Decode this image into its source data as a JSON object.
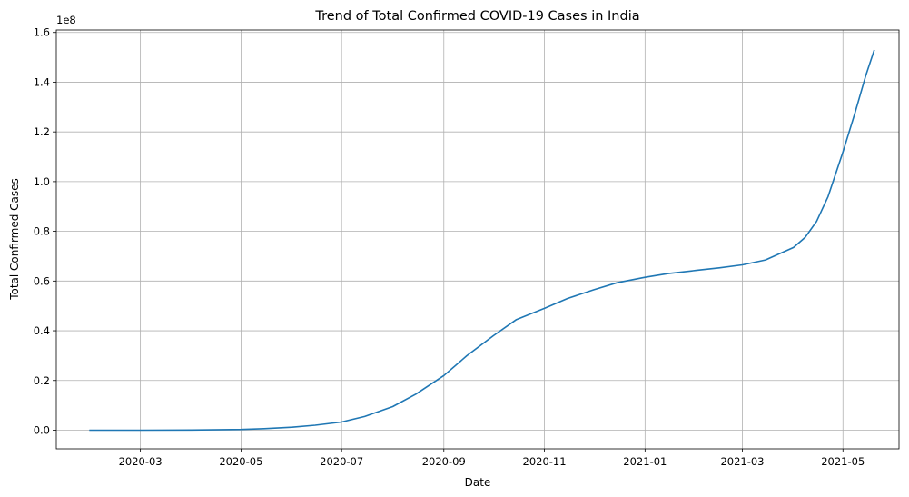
{
  "chart_data": {
    "type": "line",
    "title": "Trend of Total Confirmed COVID-19 Cases in India",
    "xlabel": "Date",
    "ylabel": "Total Confirmed Cases",
    "y_offset_label": "1e8",
    "grid": true,
    "xlim": [
      "2020-01-10",
      "2021-06-04"
    ],
    "ylim": [
      -0.075,
      1.61
    ],
    "y_scale": 100000000,
    "x_ticks": [
      {
        "date": "2020-03-01",
        "label": "2020-03"
      },
      {
        "date": "2020-05-01",
        "label": "2020-05"
      },
      {
        "date": "2020-07-01",
        "label": "2020-07"
      },
      {
        "date": "2020-09-01",
        "label": "2020-09"
      },
      {
        "date": "2020-11-01",
        "label": "2020-11"
      },
      {
        "date": "2021-01-01",
        "label": "2021-01"
      },
      {
        "date": "2021-03-01",
        "label": "2021-03"
      },
      {
        "date": "2021-05-01",
        "label": "2021-05"
      }
    ],
    "y_ticks": [
      {
        "value": 0.0,
        "label": "0.0"
      },
      {
        "value": 0.2,
        "label": "0.2"
      },
      {
        "value": 0.4,
        "label": "0.4"
      },
      {
        "value": 0.6,
        "label": "0.6"
      },
      {
        "value": 0.8,
        "label": "0.8"
      },
      {
        "value": 1.0,
        "label": "1.0"
      },
      {
        "value": 1.2,
        "label": "1.2"
      },
      {
        "value": 1.4,
        "label": "1.4"
      },
      {
        "value": 1.6,
        "label": "1.6"
      }
    ],
    "series": [
      {
        "name": "Total Confirmed Cases",
        "color": "#1f77b4",
        "points": [
          [
            "2020-01-30",
            0.0
          ],
          [
            "2020-03-01",
            0.0
          ],
          [
            "2020-04-01",
            0.0005
          ],
          [
            "2020-05-01",
            0.003
          ],
          [
            "2020-05-15",
            0.006
          ],
          [
            "2020-06-01",
            0.012
          ],
          [
            "2020-06-15",
            0.02
          ],
          [
            "2020-07-01",
            0.033
          ],
          [
            "2020-07-15",
            0.055
          ],
          [
            "2020-08-01",
            0.095
          ],
          [
            "2020-08-15",
            0.145
          ],
          [
            "2020-09-01",
            0.22
          ],
          [
            "2020-09-15",
            0.3
          ],
          [
            "2020-10-01",
            0.38
          ],
          [
            "2020-10-15",
            0.445
          ],
          [
            "2020-11-01",
            0.49
          ],
          [
            "2020-11-15",
            0.53
          ],
          [
            "2020-12-01",
            0.565
          ],
          [
            "2020-12-15",
            0.593
          ],
          [
            "2021-01-01",
            0.615
          ],
          [
            "2021-01-15",
            0.63
          ],
          [
            "2021-02-01",
            0.643
          ],
          [
            "2021-02-15",
            0.653
          ],
          [
            "2021-03-01",
            0.665
          ],
          [
            "2021-03-15",
            0.685
          ],
          [
            "2021-04-01",
            0.735
          ],
          [
            "2021-04-08",
            0.775
          ],
          [
            "2021-04-15",
            0.84
          ],
          [
            "2021-04-22",
            0.94
          ],
          [
            "2021-05-01",
            1.12
          ],
          [
            "2021-05-08",
            1.27
          ],
          [
            "2021-05-15",
            1.43
          ],
          [
            "2021-05-20",
            1.53
          ]
        ]
      }
    ]
  }
}
